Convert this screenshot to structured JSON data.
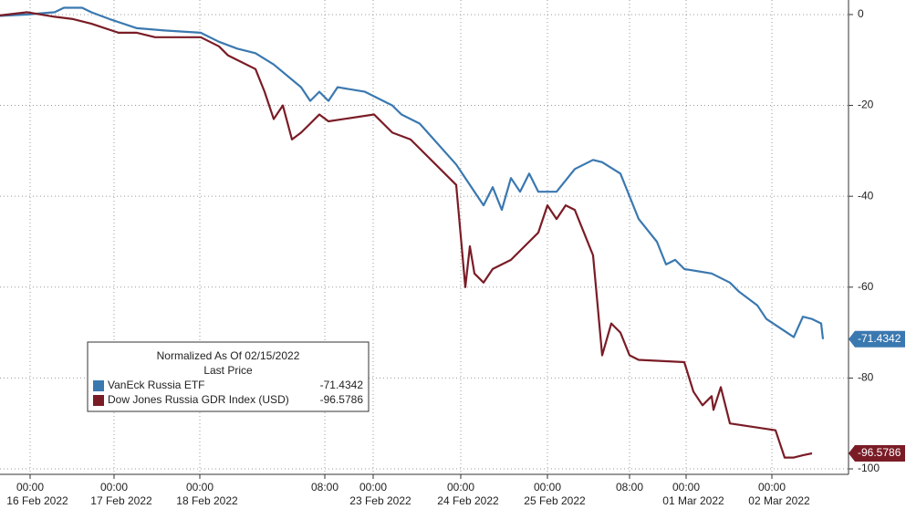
{
  "chart_data": {
    "type": "line",
    "legend_title": "Normalized As Of 02/15/2022",
    "legend_subtitle": "Last Price",
    "legend_position": "lower-left",
    "grid": true,
    "xlim": [
      0,
      93
    ],
    "ylim": [
      -101.2,
      3.2
    ],
    "yticks": [
      0,
      -20,
      -40,
      -60,
      -80,
      -100
    ],
    "xticks": [
      {
        "value": 3.3,
        "label": "00:00"
      },
      {
        "value": 12.5,
        "label": "00:00"
      },
      {
        "value": 21.9,
        "label": "00:00"
      },
      {
        "value": 35.6,
        "label": "08:00"
      },
      {
        "value": 40.9,
        "label": "00:00"
      },
      {
        "value": 50.5,
        "label": "00:00"
      },
      {
        "value": 60.0,
        "label": "00:00"
      },
      {
        "value": 69.0,
        "label": "08:00"
      },
      {
        "value": 75.2,
        "label": "00:00"
      },
      {
        "value": 84.6,
        "label": "00:00"
      }
    ],
    "date_labels": [
      {
        "value": 3.3,
        "label": "16 Feb 2022"
      },
      {
        "value": 12.5,
        "label": "17 Feb 2022"
      },
      {
        "value": 21.9,
        "label": "18 Feb 2022"
      },
      {
        "value": 40.9,
        "label": "23 Feb 2022"
      },
      {
        "value": 50.5,
        "label": "24 Feb 2022"
      },
      {
        "value": 60.0,
        "label": "25 Feb 2022"
      },
      {
        "value": 75.2,
        "label": "01 Mar 2022"
      },
      {
        "value": 84.6,
        "label": "02 Mar 2022"
      }
    ],
    "series": [
      {
        "name": "VanEck Russia ETF",
        "color": "#3a78b0",
        "x": [
          0,
          3,
          6,
          7,
          9,
          10,
          12,
          15,
          18,
          22,
          24,
          26,
          28,
          30,
          33,
          34,
          35,
          36,
          37,
          40,
          43,
          44,
          46,
          50,
          53,
          54,
          55,
          56,
          57,
          58,
          59,
          61,
          63,
          65,
          66,
          68,
          70,
          72,
          73,
          74,
          75,
          78,
          80,
          81,
          83,
          84,
          87,
          88,
          89,
          90,
          90.2
        ],
        "values": [
          -0.3,
          0,
          0.5,
          1.5,
          1.5,
          0.5,
          -1,
          -3,
          -3.5,
          -4,
          -6,
          -7.5,
          -8.5,
          -11,
          -16,
          -19,
          -17,
          -19,
          -16,
          -17,
          -20,
          -22,
          -24,
          -33,
          -42,
          -38,
          -43,
          -36,
          -39,
          -35,
          -39,
          -39,
          -34,
          -32,
          -32.5,
          -35,
          -45,
          -50,
          -55,
          -54,
          -56,
          -57,
          -59,
          -61,
          -64,
          -67,
          -71,
          -66.5,
          -67,
          -68,
          -71.4342
        ]
      },
      {
        "name": "Dow Jones Russia GDR Index (USD)",
        "color": "#7a1c26",
        "x": [
          0,
          3,
          6,
          8,
          10,
          13,
          15,
          17,
          22,
          24,
          25,
          26,
          28,
          29,
          30,
          31,
          32,
          33,
          34,
          35,
          36,
          41,
          43,
          45,
          50,
          51,
          51.5,
          52,
          53,
          54,
          56,
          59,
          60,
          61,
          62,
          63,
          65,
          66,
          67,
          68,
          69,
          70,
          75,
          76,
          77,
          78,
          78.2,
          79,
          80,
          85,
          86,
          87,
          88,
          89
        ],
        "values": [
          -0.2,
          0.5,
          -0.5,
          -1,
          -2,
          -4,
          -4,
          -5,
          -5,
          -7,
          -9,
          -10,
          -12,
          -17,
          -23,
          -20,
          -27.5,
          -26,
          -24,
          -22,
          -23.5,
          -22,
          -26,
          -27.5,
          -37.5,
          -60,
          -51,
          -57,
          -59,
          -56,
          -54,
          -48,
          -42,
          -45,
          -42,
          -43,
          -53,
          -75,
          -68,
          -70,
          -75,
          -76,
          -76.5,
          -83,
          -86,
          -84,
          -87,
          -82,
          -90,
          -91.5,
          -97.5,
          -97.5,
          -97,
          -96.5786
        ]
      }
    ]
  }
}
